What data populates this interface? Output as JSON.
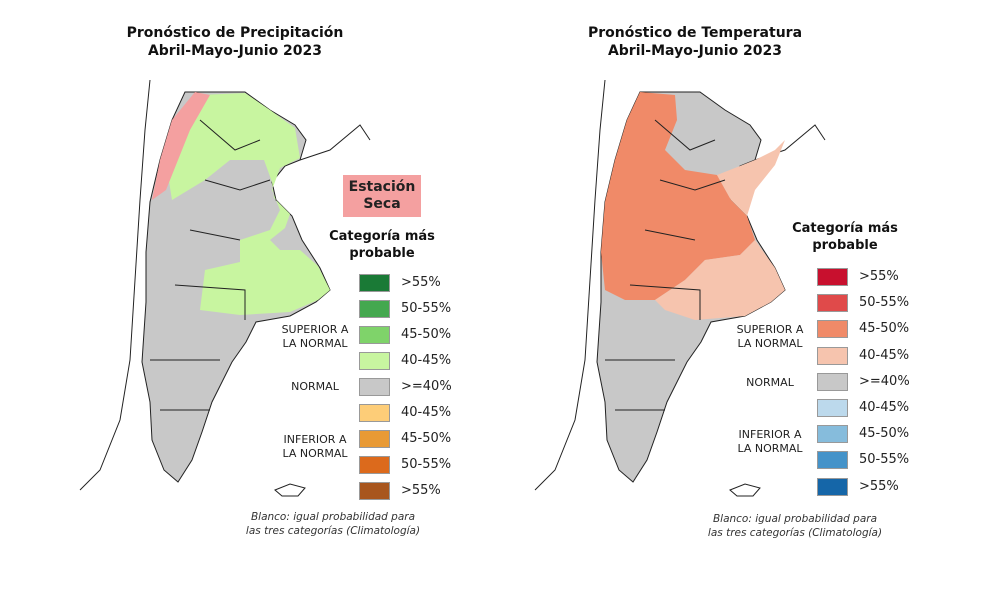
{
  "maps": [
    {
      "title_line1": "Pronóstico de Precipitación",
      "title_line2": "Abril-Mayo-Junio 2023",
      "badge": {
        "line1": "Estación",
        "line2": "Seca",
        "color": "#f4a0a0"
      },
      "legend_title_line1": "Categoría más",
      "legend_title_line2": "probable",
      "groups": {
        "superior": [
          "SUPERIOR A",
          "LA NORMAL"
        ],
        "normal": "NORMAL",
        "inferior": [
          "INFERIOR A",
          "LA NORMAL"
        ]
      },
      "legend": [
        {
          "label": ">55%",
          "color": "#1a7a36"
        },
        {
          "label": "50-55%",
          "color": "#44a84f"
        },
        {
          "label": "45-50%",
          "color": "#7fd36a"
        },
        {
          "label": "40-45%",
          "color": "#c8f5a0"
        },
        {
          "label": ">=40%",
          "color": "#c8c8c8"
        },
        {
          "label": "40-45%",
          "color": "#fdcd78"
        },
        {
          "label": "45-50%",
          "color": "#e89a35"
        },
        {
          "label": "50-55%",
          "color": "#dc6a1c"
        },
        {
          "label": ">55%",
          "color": "#a8561e"
        }
      ],
      "note_line1": "Blanco: igual probabilidad para",
      "note_line2": "las tres categorías (Climatología)"
    },
    {
      "title_line1": "Pronóstico de Temperatura",
      "title_line2": "Abril-Mayo-Junio 2023",
      "legend_title_line1": "Categoría más",
      "legend_title_line2": "probable",
      "groups": {
        "superior": [
          "SUPERIOR A",
          "LA NORMAL"
        ],
        "normal": "NORMAL",
        "inferior": [
          "INFERIOR A",
          "LA NORMAL"
        ]
      },
      "legend": [
        {
          "label": ">55%",
          "color": "#c8102e"
        },
        {
          "label": "50-55%",
          "color": "#e04a4a"
        },
        {
          "label": "45-50%",
          "color": "#f08a68"
        },
        {
          "label": "40-45%",
          "color": "#f6c4ae"
        },
        {
          "label": ">=40%",
          "color": "#c8c8c8"
        },
        {
          "label": "40-45%",
          "color": "#bcd9ec"
        },
        {
          "label": "45-50%",
          "color": "#86bcdc"
        },
        {
          "label": "50-55%",
          "color": "#4593c9"
        },
        {
          "label": ">55%",
          "color": "#1566a8"
        }
      ],
      "note_line1": "Blanco: igual probabilidad para",
      "note_line2": "las tres categorías (Climatología)"
    }
  ]
}
